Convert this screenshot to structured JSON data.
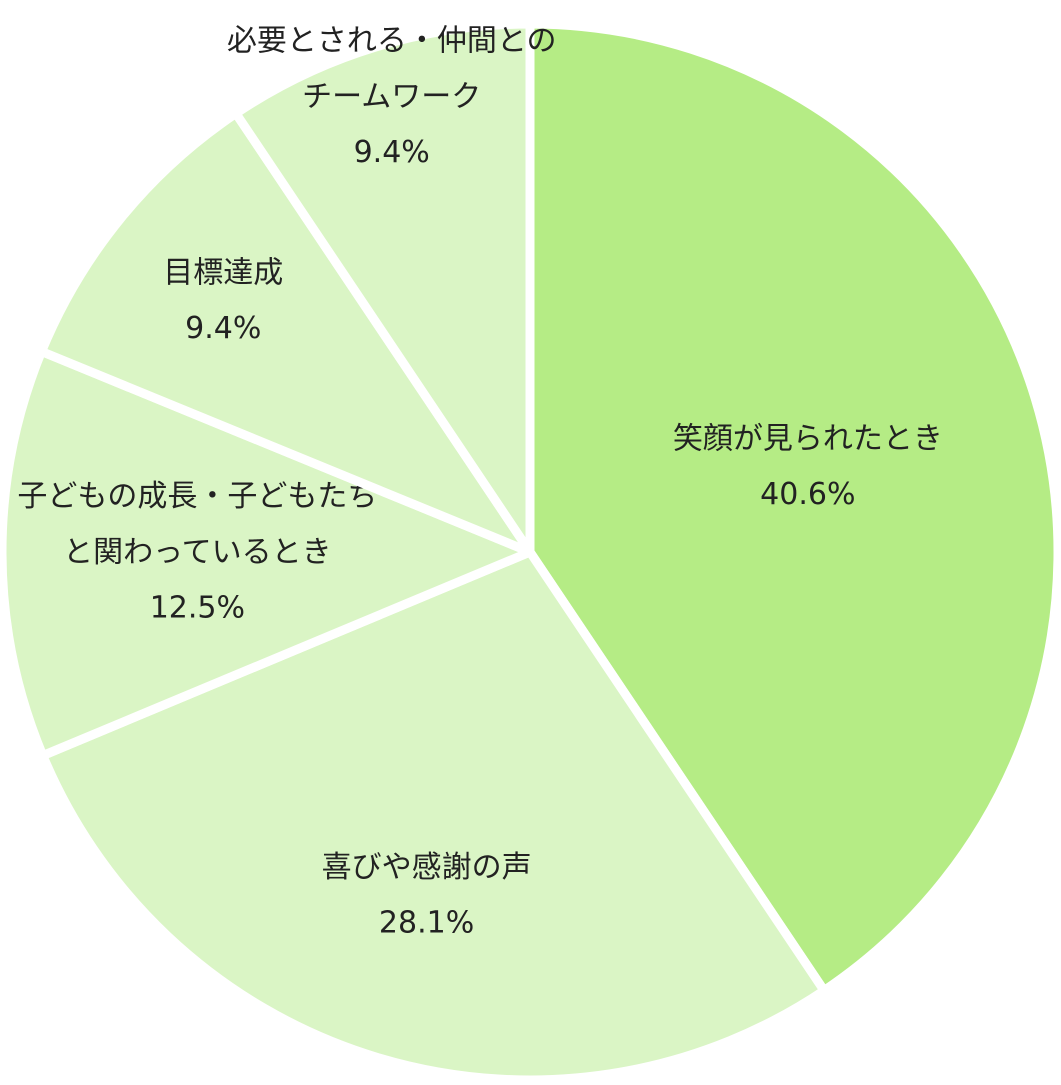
{
  "chart_data": {
    "type": "pie",
    "categories": [
      "笑顔が見られたとき",
      "喜びや感謝の声",
      "子どもの成長・子どもたち\nと関わっているとき",
      "目標達成",
      "必要とされる・仲間との\nチームワーク"
    ],
    "values": [
      40.6,
      28.1,
      12.5,
      9.4,
      9.4
    ],
    "value_labels": [
      "40.6%",
      "28.1%",
      "12.5%",
      "9.4%",
      "9.4%"
    ],
    "colors": [
      "#b5ec85",
      "#daf5c5",
      "#daf5c5",
      "#daf5c5",
      "#daf5c5"
    ]
  }
}
